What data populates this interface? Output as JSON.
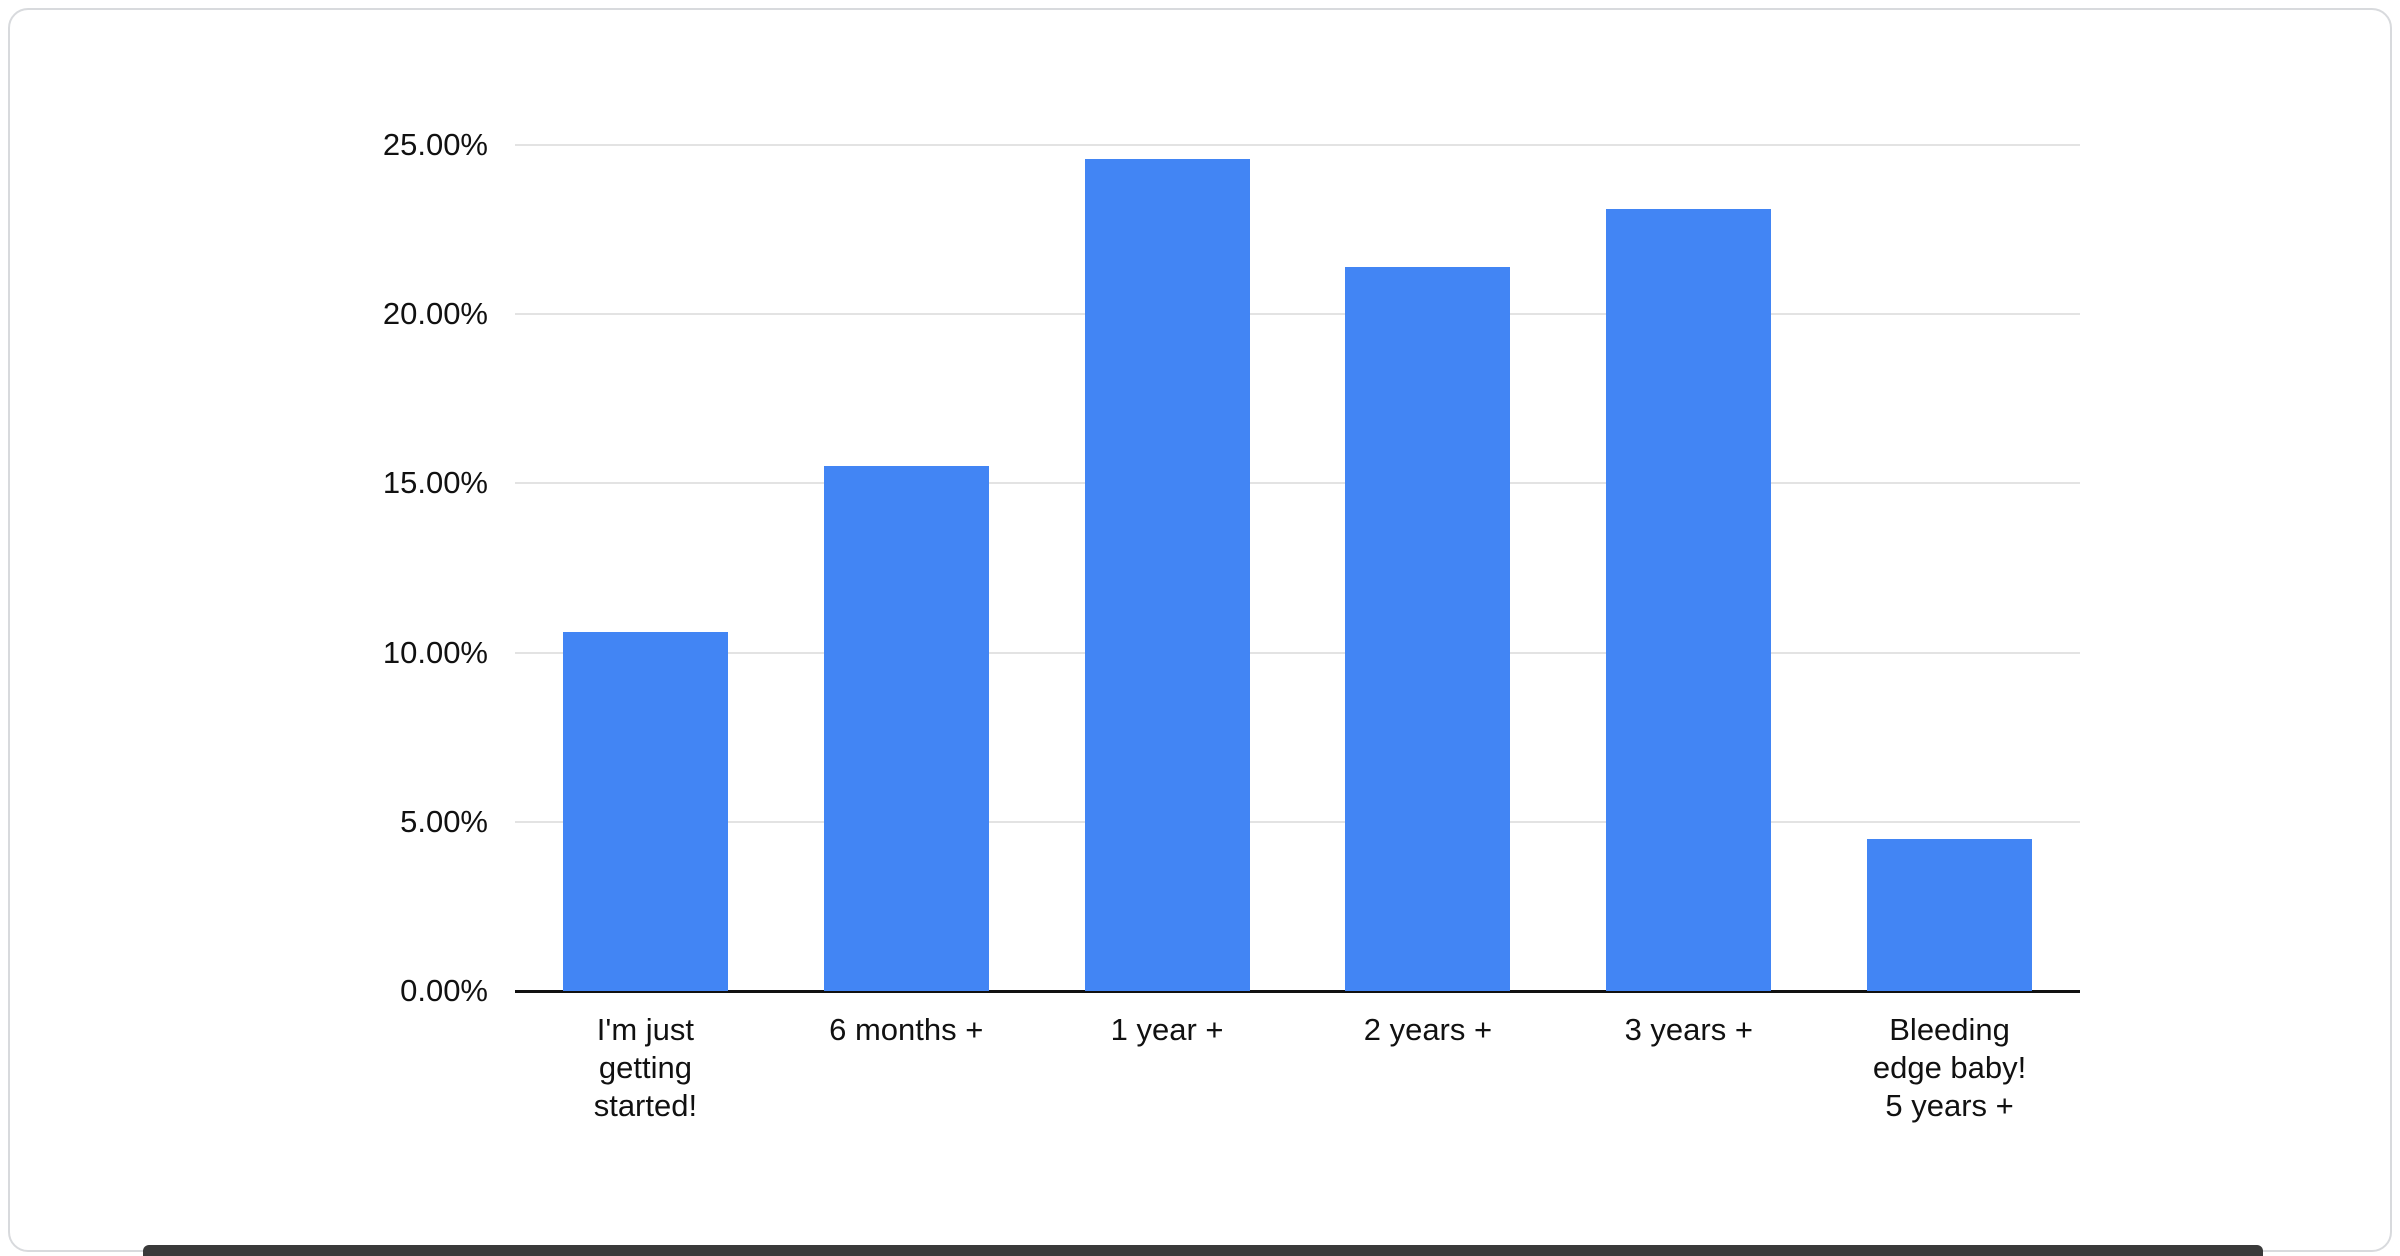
{
  "page": {
    "background_color": "#ffffff",
    "card_border_color": "#d8dadd",
    "bottom_edge_color": "#3a3a3a"
  },
  "chart_data": {
    "type": "bar",
    "title": "",
    "xlabel": "",
    "ylabel": "",
    "categories": [
      "I'm just getting started!",
      "6 months +",
      "1 year +",
      "2 years +",
      "3 years +",
      "Bleeding edge baby! 5 years +"
    ],
    "category_display_lines": [
      [
        "I'm just",
        "getting",
        "started!"
      ],
      [
        "6 months +"
      ],
      [
        "1 year +"
      ],
      [
        "2 years +"
      ],
      [
        "3 years +"
      ],
      [
        "Bleeding",
        "edge baby!",
        "5 years +"
      ]
    ],
    "values": [
      10.6,
      15.5,
      24.6,
      21.4,
      23.1,
      4.5
    ],
    "value_format": "percent",
    "ylim": [
      0,
      25
    ],
    "ytick_step": 5,
    "ytick_labels": [
      "0.00%",
      "5.00%",
      "10.00%",
      "15.00%",
      "20.00%",
      "25.00%"
    ],
    "grid": true,
    "legend": "none",
    "bar_color": "#4285f4",
    "gridline_color": "#e3e3e3",
    "axis_line_color": "#111111",
    "text_color": "#111111"
  }
}
